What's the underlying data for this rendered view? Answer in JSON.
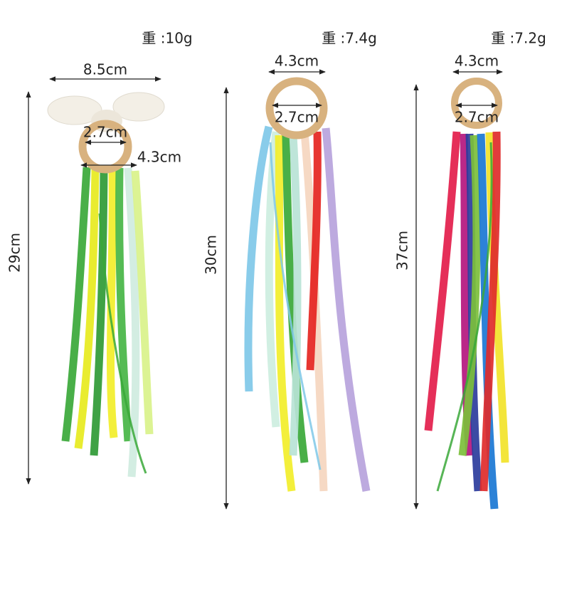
{
  "products": [
    {
      "weight": "重 :10g",
      "width": "8.5cm",
      "inner": "2.7cm",
      "outer": "4.3cm",
      "length": "29cm"
    },
    {
      "weight": "重 :7.4g",
      "outer": "4.3cm",
      "inner": "2.7cm",
      "length": "30cm"
    },
    {
      "weight": "重 :7.2g",
      "outer": "4.3cm",
      "inner": "2.7cm",
      "length": "37cm"
    }
  ]
}
